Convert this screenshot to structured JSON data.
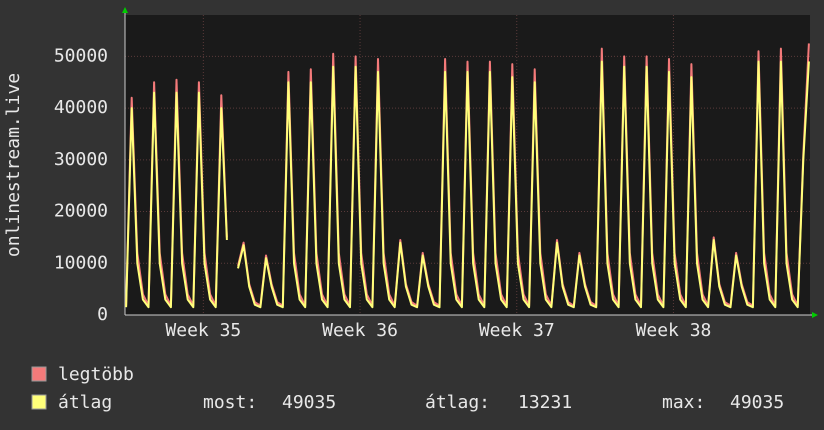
{
  "chart_data": {
    "type": "line",
    "y_label": "onlinestream.live",
    "x": [
      0.05,
      0.3,
      0.55,
      0.8,
      1.05,
      1.3,
      1.55,
      1.8,
      2.05,
      2.3,
      2.55,
      2.8,
      3.05,
      3.3,
      3.55,
      3.8,
      4.05,
      4.3,
      4.55,
      4.8,
      5.05,
      5.3,
      5.55,
      5.8,
      6.05,
      6.3,
      6.55,
      6.8,
      7.05,
      7.3,
      7.55,
      7.8,
      8.05,
      8.3,
      8.55,
      8.8,
      9.05,
      9.3,
      9.55,
      9.8,
      10.05,
      10.3,
      10.55,
      10.8,
      11.05,
      11.3,
      11.55,
      11.8,
      12.05,
      12.3,
      12.55,
      12.8,
      13.05,
      13.3,
      13.55,
      13.8,
      14.05,
      14.3,
      14.55,
      14.8,
      15.05,
      15.3,
      15.55,
      15.8,
      16.05,
      16.3,
      16.55,
      16.8,
      17.05,
      17.3,
      17.55,
      17.8,
      18.05,
      18.3,
      18.55,
      18.8,
      19.05,
      19.3,
      19.55,
      19.8,
      20.05,
      20.3,
      20.55,
      20.8,
      21.05,
      21.3,
      21.55,
      21.8,
      22.05,
      22.3,
      22.55,
      22.8,
      23.05,
      23.3,
      23.55,
      23.8,
      24.05,
      24.3,
      24.55,
      24.8,
      25.05,
      25.3,
      25.55,
      25.8,
      26.05,
      26.3,
      26.55,
      26.8,
      27.05,
      27.3,
      27.55,
      27.8,
      28.05,
      28.3,
      28.55,
      28.8,
      29.05,
      29.3,
      29.55,
      29.8,
      30.05,
      30.3,
      30.55
    ],
    "series": [
      {
        "name": "legtöbb",
        "color": "#f47a7a",
        "values": [
          1800,
          42000,
          12000,
          4000,
          1800,
          45000,
          12000,
          4000,
          1800,
          45500,
          12000,
          4000,
          1800,
          45000,
          12000,
          4000,
          1800,
          42500,
          15000,
          null,
          9500,
          14000,
          6000,
          2500,
          1800,
          11500,
          6000,
          2500,
          1800,
          47000,
          12000,
          4000,
          1800,
          47500,
          12000,
          4000,
          1800,
          50500,
          12000,
          4000,
          1800,
          50000,
          12000,
          4000,
          1800,
          49500,
          12000,
          4000,
          1800,
          14500,
          6000,
          2500,
          1800,
          12000,
          6000,
          2500,
          1800,
          49500,
          12000,
          4000,
          1800,
          49000,
          12000,
          4000,
          1800,
          49000,
          12000,
          4000,
          1800,
          48500,
          12000,
          4000,
          1800,
          47500,
          12000,
          4000,
          1800,
          14500,
          6000,
          2500,
          1800,
          12000,
          6000,
          2500,
          1800,
          51500,
          12000,
          4000,
          1800,
          50000,
          12000,
          4000,
          1800,
          50000,
          12000,
          4000,
          1800,
          49500,
          12000,
          4000,
          1800,
          48500,
          12000,
          4000,
          1800,
          15000,
          6000,
          2500,
          1800,
          12000,
          6000,
          2500,
          1800,
          51000,
          12000,
          4000,
          1800,
          51500,
          12000,
          4000,
          1800,
          31000,
          52500
        ]
      },
      {
        "name": "átlag",
        "color": "#ffff7a",
        "values": [
          1500,
          40000,
          10000,
          3000,
          1500,
          43000,
          10000,
          3000,
          1500,
          43000,
          10000,
          3000,
          1500,
          43000,
          10000,
          3000,
          1500,
          40000,
          14500,
          null,
          9000,
          13500,
          5500,
          2000,
          1500,
          11000,
          5500,
          2000,
          1500,
          45000,
          10000,
          3000,
          1500,
          45000,
          10000,
          3000,
          1500,
          48000,
          10000,
          3000,
          1500,
          48000,
          10000,
          3000,
          1500,
          47000,
          10000,
          3000,
          1500,
          14000,
          5500,
          2000,
          1500,
          11500,
          5500,
          2000,
          1500,
          47000,
          10000,
          3000,
          1500,
          47000,
          10000,
          3000,
          1500,
          47000,
          10000,
          3000,
          1500,
          46000,
          10000,
          3000,
          1500,
          45000,
          10000,
          3000,
          1500,
          14000,
          5500,
          2000,
          1500,
          11500,
          5500,
          2000,
          1500,
          49000,
          10000,
          3000,
          1500,
          48000,
          10000,
          3000,
          1500,
          48000,
          10000,
          3000,
          1500,
          47000,
          10000,
          3000,
          1500,
          46000,
          10000,
          3000,
          1500,
          14500,
          5500,
          2000,
          1500,
          11500,
          5500,
          2000,
          1500,
          49000,
          10000,
          3000,
          1500,
          49000,
          10000,
          3000,
          1500,
          30000,
          49035
        ]
      }
    ],
    "xlim": [
      0,
      30.6
    ],
    "xticks": [
      {
        "value": 3.5,
        "label": "Week 35"
      },
      {
        "value": 10.5,
        "label": "Week 36"
      },
      {
        "value": 17.5,
        "label": "Week 37"
      },
      {
        "value": 24.5,
        "label": "Week 38"
      }
    ],
    "ylim": [
      0,
      58000
    ],
    "yticks": [
      0,
      10000,
      20000,
      30000,
      40000,
      50000
    ],
    "grid": true,
    "stats": [
      {
        "label": "most:",
        "value": 49035
      },
      {
        "label": "átlag:",
        "value": 13231
      },
      {
        "label": "max:",
        "value": 49035
      }
    ]
  }
}
